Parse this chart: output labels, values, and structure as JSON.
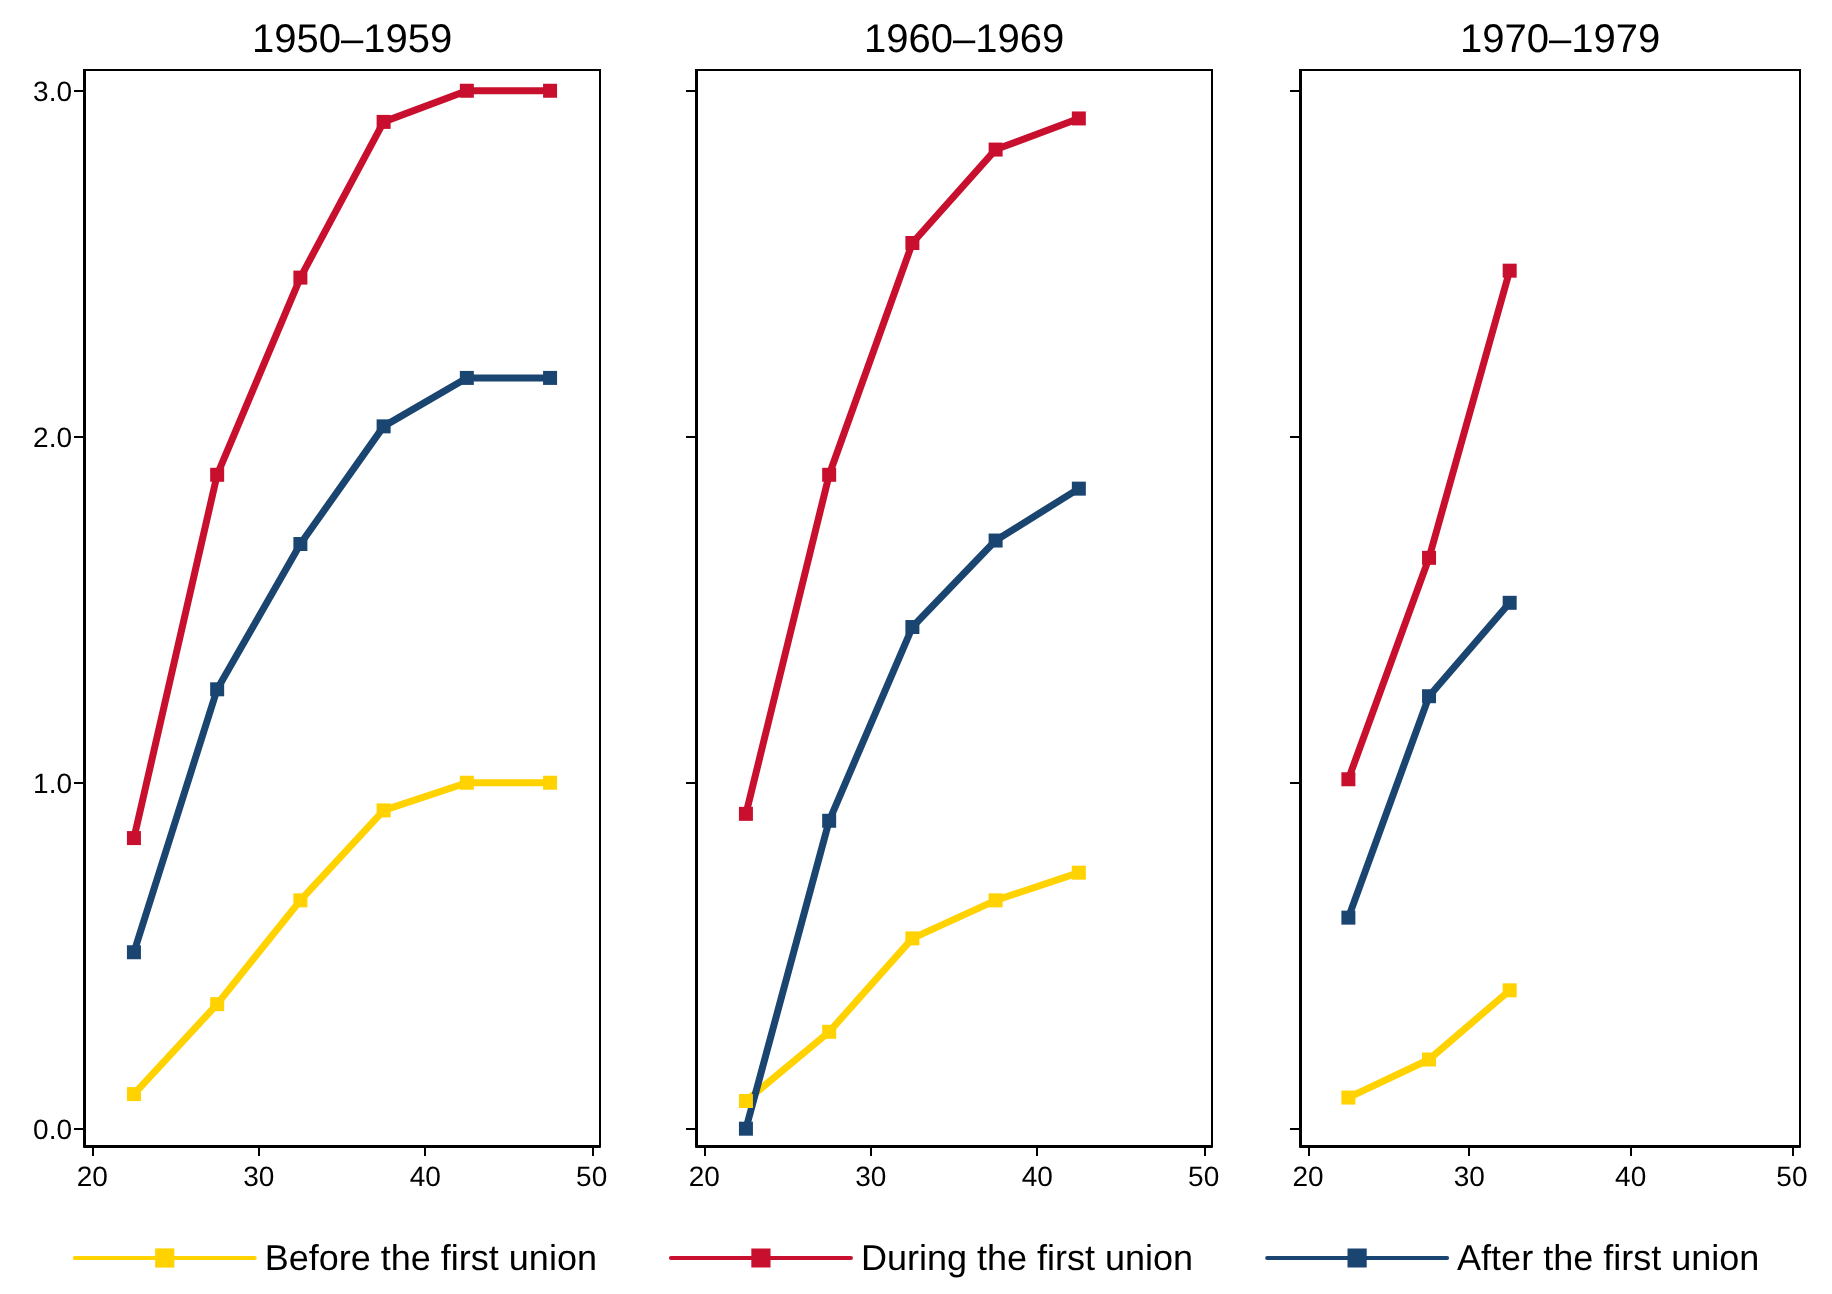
{
  "chart_data": [
    {
      "type": "line",
      "title": "1950–1959",
      "xlim": [
        19.5,
        50.5
      ],
      "xticks": [
        20,
        30,
        40,
        50
      ],
      "ylim": [
        -0.05,
        3.06
      ],
      "yticks": [
        {
          "value": 0,
          "label": "0.0"
        },
        {
          "value": 1,
          "label": "1.0"
        },
        {
          "value": 2,
          "label": "2.0"
        },
        {
          "value": 3,
          "label": "3.0"
        }
      ],
      "grid": false,
      "legend": "bottom",
      "marker": "square",
      "line_style": "solid",
      "series": [
        {
          "name": "Before the first union",
          "color": "#ffd200",
          "x": [
            22.5,
            27.5,
            32.5,
            37.5,
            42.5,
            47.5
          ],
          "values": [
            0.1,
            0.36,
            0.66,
            0.92,
            1.0,
            1.0
          ]
        },
        {
          "name": "During the first union",
          "color": "#c8102e",
          "x": [
            22.5,
            27.5,
            32.5,
            37.5,
            42.5,
            47.5
          ],
          "values": [
            0.84,
            1.89,
            2.46,
            2.91,
            3.0,
            3.0
          ]
        },
        {
          "name": "After the first union",
          "color": "#1a4571",
          "x": [
            22.5,
            27.5,
            32.5,
            37.5,
            42.5,
            47.5
          ],
          "values": [
            0.51,
            1.27,
            1.69,
            2.03,
            2.17,
            2.17
          ]
        }
      ]
    },
    {
      "type": "line",
      "title": "1960–1969",
      "xlim": [
        19.5,
        50.5
      ],
      "xticks": [
        20,
        30,
        40,
        50
      ],
      "ylim": [
        -0.05,
        3.06
      ],
      "yticks": [
        {
          "value": 0,
          "label": null
        },
        {
          "value": 1,
          "label": null
        },
        {
          "value": 2,
          "label": null
        },
        {
          "value": 3,
          "label": null
        }
      ],
      "tick_labels": "x",
      "grid": false,
      "marker": "square",
      "line_style": "solid",
      "series": [
        {
          "color": "#ffd200",
          "x": [
            22.5,
            27.5,
            32.5,
            37.5,
            42.5
          ],
          "values": [
            0.08,
            0.28,
            0.55,
            0.66,
            0.74
          ]
        },
        {
          "color": "#c8102e",
          "x": [
            22.5,
            27.5,
            32.5,
            37.5,
            42.5
          ],
          "values": [
            0.91,
            1.89,
            2.56,
            2.83,
            2.92
          ]
        },
        {
          "color": "#1a4571",
          "x": [
            22.5,
            27.5,
            32.5,
            37.5,
            42.5
          ],
          "values": [
            0.0,
            0.89,
            1.45,
            1.7,
            1.85
          ]
        }
      ]
    },
    {
      "type": "line",
      "title": "1970–1979",
      "xlim": [
        19.5,
        50.5
      ],
      "xticks": [
        20,
        30,
        40,
        50
      ],
      "ylim": [
        -0.05,
        3.06
      ],
      "yticks": [
        {
          "value": 0,
          "label": null
        },
        {
          "value": 1,
          "label": null
        },
        {
          "value": 2,
          "label": null
        },
        {
          "value": 3,
          "label": null
        }
      ],
      "tick_labels": "x",
      "grid": false,
      "marker": "square",
      "line_style": "solid",
      "series": [
        {
          "color": "#ffd200",
          "x": [
            22.5,
            27.5,
            32.5
          ],
          "values": [
            0.09,
            0.2,
            0.4
          ]
        },
        {
          "color": "#c8102e",
          "x": [
            22.5,
            27.5,
            32.5
          ],
          "values": [
            1.01,
            1.65,
            2.48
          ]
        },
        {
          "color": "#1a4571",
          "x": [
            22.5,
            27.5,
            32.5
          ],
          "values": [
            0.61,
            1.25,
            1.52
          ]
        }
      ]
    }
  ]
}
